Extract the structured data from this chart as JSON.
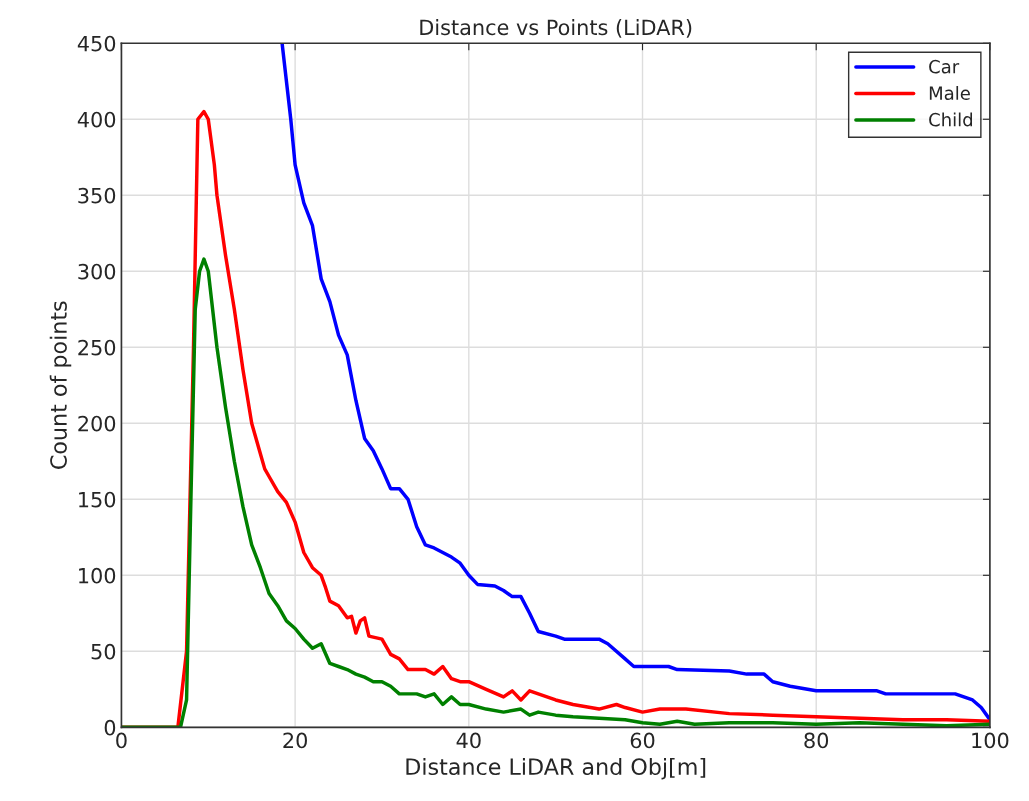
{
  "chart_data": {
    "type": "line",
    "title": "Distance vs Points (LiDAR)",
    "xlabel": "Distance LiDAR and Obj[m]",
    "ylabel": "Count of points",
    "xlim": [
      0,
      100
    ],
    "xticks": [
      0,
      20,
      40,
      60,
      80,
      100
    ],
    "ylim": [
      0,
      450
    ],
    "yticks": [
      0,
      50,
      100,
      150,
      200,
      250,
      300,
      350,
      400,
      450
    ],
    "grid": true,
    "legend": "top right",
    "series": [
      {
        "name": "Car",
        "color": "#0000ff",
        "x": [
          18.5,
          19.5,
          20,
          21,
          22,
          23,
          24,
          25,
          26,
          27,
          28,
          29,
          30,
          31,
          32,
          33,
          34,
          35,
          36,
          38,
          39,
          40,
          41,
          43,
          44,
          45,
          46,
          47,
          48,
          50,
          51,
          55,
          56,
          58,
          59,
          63,
          64,
          70,
          72,
          74,
          75,
          77,
          79,
          80,
          87,
          88,
          96,
          98,
          99,
          100
        ],
        "values": [
          450,
          400,
          370,
          345,
          330,
          295,
          280,
          258,
          245,
          215,
          190,
          182,
          170,
          157,
          157,
          150,
          132,
          120,
          118,
          112,
          108,
          100,
          94,
          93,
          90,
          86,
          86,
          75,
          63,
          60,
          58,
          58,
          55,
          45,
          40,
          40,
          38,
          37,
          35,
          35,
          30,
          27,
          25,
          24,
          24,
          22,
          22,
          18,
          13,
          5
        ]
      },
      {
        "name": "Male",
        "color": "#ff0000",
        "x": [
          0,
          6.5,
          7.5,
          8.3,
          8.8,
          9.5,
          10,
          10.7,
          11,
          12,
          13,
          14,
          15,
          16,
          16.5,
          17,
          18,
          19,
          20,
          21,
          22,
          23,
          23.5,
          24,
          25,
          26,
          26.5,
          27,
          27.5,
          28,
          28.5,
          30,
          31,
          32,
          33,
          35,
          36,
          37,
          38,
          39,
          40,
          42,
          44,
          45,
          46,
          47,
          50,
          52,
          55,
          57,
          58,
          60,
          62,
          65,
          70,
          75,
          80,
          85,
          90,
          95,
          100
        ],
        "values": [
          0,
          0,
          50,
          250,
          400,
          405,
          400,
          370,
          350,
          310,
          275,
          235,
          200,
          180,
          170,
          165,
          155,
          148,
          135,
          115,
          105,
          100,
          92,
          83,
          80,
          72,
          73,
          62,
          70,
          72,
          60,
          58,
          48,
          45,
          38,
          38,
          35,
          40,
          32,
          30,
          30,
          25,
          20,
          24,
          18,
          24,
          18,
          15,
          12,
          15,
          13,
          10,
          12,
          12,
          9,
          8,
          7,
          6,
          5,
          5,
          4
        ]
      },
      {
        "name": "Child",
        "color": "#008000",
        "x": [
          0,
          6.8,
          7.5,
          8,
          8.5,
          9,
          9.5,
          10,
          11,
          12,
          13,
          14,
          15,
          16,
          17,
          18,
          19,
          20,
          21,
          22,
          23,
          24,
          25,
          26,
          27,
          28,
          29,
          30,
          31,
          32,
          34,
          35,
          36,
          37,
          38,
          39,
          40,
          42,
          44,
          46,
          47,
          48,
          50,
          52,
          55,
          58,
          60,
          62,
          64,
          66,
          70,
          75,
          80,
          85,
          90,
          95,
          100
        ],
        "values": [
          0,
          0,
          18,
          150,
          275,
          300,
          308,
          300,
          250,
          210,
          175,
          145,
          120,
          105,
          88,
          80,
          70,
          65,
          58,
          52,
          55,
          42,
          40,
          38,
          35,
          33,
          30,
          30,
          27,
          22,
          22,
          20,
          22,
          15,
          20,
          15,
          15,
          12,
          10,
          12,
          8,
          10,
          8,
          7,
          6,
          5,
          3,
          2,
          4,
          2,
          3,
          3,
          2,
          3,
          2,
          1,
          2
        ]
      }
    ]
  }
}
